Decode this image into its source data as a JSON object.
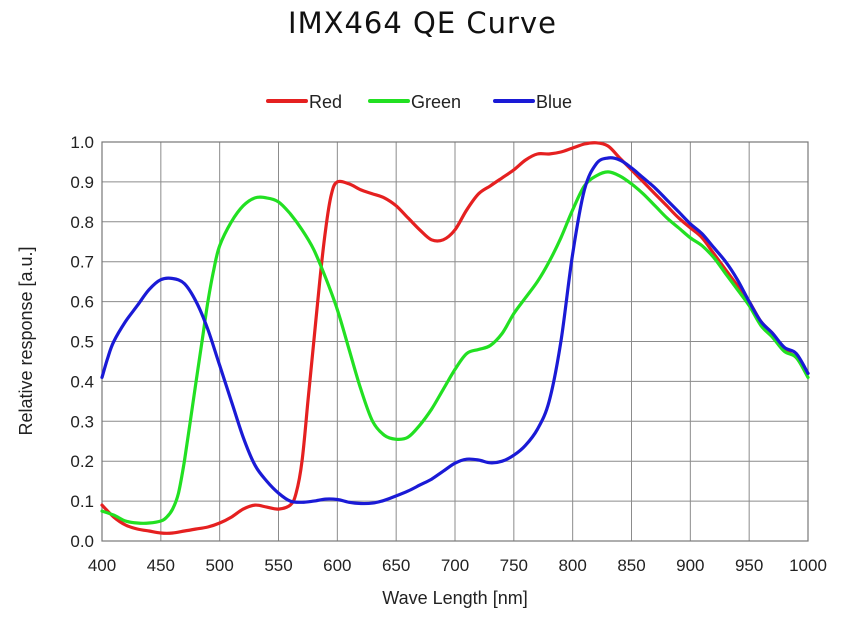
{
  "chart_data": {
    "type": "line",
    "title": "IMX464 QE Curve",
    "xlabel": "Wave Length [nm]",
    "ylabel": "Relative response [a.u.]",
    "xlim": [
      400,
      1000
    ],
    "ylim": [
      0.0,
      1.0
    ],
    "x_ticks": [
      400,
      450,
      500,
      550,
      600,
      650,
      700,
      750,
      800,
      850,
      900,
      950,
      1000
    ],
    "y_ticks": [
      "0.0",
      "0.1",
      "0.2",
      "0.3",
      "0.4",
      "0.5",
      "0.6",
      "0.7",
      "0.8",
      "0.9",
      "1.0"
    ],
    "grid": true,
    "legend_position": "top-center",
    "series": [
      {
        "name": "Red",
        "color": "#e52020",
        "points": [
          [
            400,
            0.09
          ],
          [
            410,
            0.06
          ],
          [
            420,
            0.04
          ],
          [
            430,
            0.03
          ],
          [
            440,
            0.025
          ],
          [
            450,
            0.02
          ],
          [
            460,
            0.02
          ],
          [
            470,
            0.025
          ],
          [
            480,
            0.03
          ],
          [
            490,
            0.035
          ],
          [
            500,
            0.045
          ],
          [
            510,
            0.06
          ],
          [
            520,
            0.08
          ],
          [
            530,
            0.09
          ],
          [
            540,
            0.085
          ],
          [
            550,
            0.08
          ],
          [
            560,
            0.09
          ],
          [
            565,
            0.12
          ],
          [
            570,
            0.2
          ],
          [
            575,
            0.35
          ],
          [
            580,
            0.5
          ],
          [
            585,
            0.65
          ],
          [
            590,
            0.78
          ],
          [
            595,
            0.87
          ],
          [
            600,
            0.9
          ],
          [
            610,
            0.895
          ],
          [
            620,
            0.88
          ],
          [
            630,
            0.87
          ],
          [
            640,
            0.86
          ],
          [
            650,
            0.84
          ],
          [
            660,
            0.81
          ],
          [
            670,
            0.78
          ],
          [
            680,
            0.755
          ],
          [
            690,
            0.755
          ],
          [
            700,
            0.78
          ],
          [
            710,
            0.83
          ],
          [
            720,
            0.87
          ],
          [
            730,
            0.89
          ],
          [
            740,
            0.91
          ],
          [
            750,
            0.93
          ],
          [
            760,
            0.955
          ],
          [
            770,
            0.97
          ],
          [
            780,
            0.97
          ],
          [
            790,
            0.975
          ],
          [
            800,
            0.985
          ],
          [
            810,
            0.995
          ],
          [
            820,
            0.998
          ],
          [
            830,
            0.99
          ],
          [
            840,
            0.96
          ],
          [
            850,
            0.93
          ],
          [
            860,
            0.9
          ],
          [
            870,
            0.87
          ],
          [
            880,
            0.84
          ],
          [
            890,
            0.81
          ],
          [
            900,
            0.785
          ],
          [
            910,
            0.76
          ],
          [
            920,
            0.72
          ],
          [
            930,
            0.68
          ],
          [
            940,
            0.64
          ],
          [
            950,
            0.6
          ],
          [
            960,
            0.55
          ],
          [
            970,
            0.52
          ],
          [
            980,
            0.48
          ],
          [
            990,
            0.46
          ],
          [
            1000,
            0.42
          ]
        ]
      },
      {
        "name": "Green",
        "color": "#22e022",
        "points": [
          [
            400,
            0.075
          ],
          [
            410,
            0.065
          ],
          [
            420,
            0.05
          ],
          [
            430,
            0.045
          ],
          [
            440,
            0.045
          ],
          [
            450,
            0.05
          ],
          [
            455,
            0.06
          ],
          [
            460,
            0.08
          ],
          [
            465,
            0.12
          ],
          [
            470,
            0.2
          ],
          [
            475,
            0.3
          ],
          [
            480,
            0.4
          ],
          [
            485,
            0.5
          ],
          [
            490,
            0.6
          ],
          [
            495,
            0.68
          ],
          [
            500,
            0.74
          ],
          [
            510,
            0.8
          ],
          [
            520,
            0.84
          ],
          [
            530,
            0.86
          ],
          [
            540,
            0.86
          ],
          [
            550,
            0.85
          ],
          [
            560,
            0.82
          ],
          [
            570,
            0.78
          ],
          [
            580,
            0.73
          ],
          [
            590,
            0.66
          ],
          [
            600,
            0.58
          ],
          [
            610,
            0.48
          ],
          [
            620,
            0.38
          ],
          [
            630,
            0.3
          ],
          [
            640,
            0.265
          ],
          [
            650,
            0.255
          ],
          [
            660,
            0.26
          ],
          [
            670,
            0.29
          ],
          [
            680,
            0.33
          ],
          [
            690,
            0.38
          ],
          [
            700,
            0.43
          ],
          [
            710,
            0.47
          ],
          [
            720,
            0.48
          ],
          [
            730,
            0.49
          ],
          [
            740,
            0.52
          ],
          [
            750,
            0.57
          ],
          [
            760,
            0.61
          ],
          [
            770,
            0.65
          ],
          [
            780,
            0.7
          ],
          [
            790,
            0.76
          ],
          [
            800,
            0.83
          ],
          [
            810,
            0.89
          ],
          [
            820,
            0.915
          ],
          [
            830,
            0.925
          ],
          [
            840,
            0.915
          ],
          [
            850,
            0.895
          ],
          [
            860,
            0.87
          ],
          [
            870,
            0.84
          ],
          [
            880,
            0.81
          ],
          [
            890,
            0.785
          ],
          [
            900,
            0.76
          ],
          [
            910,
            0.74
          ],
          [
            920,
            0.71
          ],
          [
            930,
            0.67
          ],
          [
            940,
            0.63
          ],
          [
            950,
            0.59
          ],
          [
            960,
            0.54
          ],
          [
            970,
            0.51
          ],
          [
            980,
            0.475
          ],
          [
            990,
            0.46
          ],
          [
            1000,
            0.41
          ]
        ]
      },
      {
        "name": "Blue",
        "color": "#1a1ad6",
        "points": [
          [
            400,
            0.41
          ],
          [
            405,
            0.46
          ],
          [
            410,
            0.5
          ],
          [
            420,
            0.55
          ],
          [
            430,
            0.59
          ],
          [
            440,
            0.63
          ],
          [
            450,
            0.655
          ],
          [
            460,
            0.658
          ],
          [
            470,
            0.645
          ],
          [
            480,
            0.6
          ],
          [
            490,
            0.53
          ],
          [
            500,
            0.44
          ],
          [
            510,
            0.35
          ],
          [
            520,
            0.26
          ],
          [
            530,
            0.19
          ],
          [
            540,
            0.15
          ],
          [
            550,
            0.12
          ],
          [
            560,
            0.1
          ],
          [
            570,
            0.097
          ],
          [
            580,
            0.1
          ],
          [
            590,
            0.105
          ],
          [
            600,
            0.104
          ],
          [
            610,
            0.097
          ],
          [
            620,
            0.094
          ],
          [
            630,
            0.095
          ],
          [
            640,
            0.102
          ],
          [
            650,
            0.113
          ],
          [
            660,
            0.125
          ],
          [
            670,
            0.14
          ],
          [
            680,
            0.155
          ],
          [
            690,
            0.175
          ],
          [
            700,
            0.195
          ],
          [
            710,
            0.205
          ],
          [
            720,
            0.203
          ],
          [
            730,
            0.196
          ],
          [
            740,
            0.2
          ],
          [
            750,
            0.215
          ],
          [
            760,
            0.24
          ],
          [
            770,
            0.28
          ],
          [
            780,
            0.35
          ],
          [
            790,
            0.5
          ],
          [
            800,
            0.72
          ],
          [
            810,
            0.88
          ],
          [
            820,
            0.945
          ],
          [
            830,
            0.96
          ],
          [
            840,
            0.955
          ],
          [
            850,
            0.935
          ],
          [
            860,
            0.91
          ],
          [
            870,
            0.885
          ],
          [
            880,
            0.855
          ],
          [
            890,
            0.825
          ],
          [
            900,
            0.795
          ],
          [
            910,
            0.77
          ],
          [
            920,
            0.735
          ],
          [
            930,
            0.7
          ],
          [
            940,
            0.655
          ],
          [
            950,
            0.6
          ],
          [
            960,
            0.55
          ],
          [
            970,
            0.52
          ],
          [
            980,
            0.485
          ],
          [
            990,
            0.47
          ],
          [
            1000,
            0.42
          ]
        ]
      }
    ]
  }
}
